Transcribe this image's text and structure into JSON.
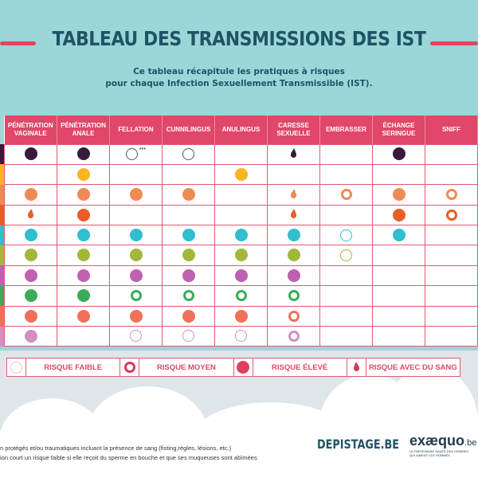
{
  "title": "TABLEAU DES TRANSMISSIONS DES IST",
  "subtitle_line1": "Ce tableau récapitule les pratiques à risques",
  "subtitle_line2": "pour chaque Infection Sexuellement Transmissible (IST).",
  "colors": {
    "header": "#e0476a",
    "background": "#9dd6d8",
    "title": "#1f5366"
  },
  "columns": [
    "PÉNÉTRATION VAGINALE",
    "PÉNÉTRATION ANALE",
    "FELLATION",
    "CUNNILINGUS",
    "ANULINGUS",
    "CARESSE SEXUELLE",
    "EMBRASSER",
    "ÉCHANGE SERINGUE",
    "SNIFF"
  ],
  "rows": [
    {
      "color": "#3a1a3a",
      "cells": [
        "high",
        "high",
        "low***",
        "low",
        "",
        "blood",
        "",
        "high",
        ""
      ]
    },
    {
      "color": "#f5b622",
      "cells": [
        "",
        "high",
        "",
        "",
        "high",
        "",
        "",
        "",
        ""
      ]
    },
    {
      "color": "#ef8a55",
      "cells": [
        "high",
        "high",
        "high",
        "high",
        "",
        "blood",
        "medium",
        "high",
        "medium"
      ]
    },
    {
      "color": "#ea5d26",
      "cells": [
        "blood",
        "high",
        "",
        "",
        "",
        "blood",
        "",
        "high",
        "medium"
      ]
    },
    {
      "color": "#2fbfcf",
      "cells": [
        "high",
        "high",
        "high",
        "high",
        "high",
        "high",
        "low",
        "high",
        ""
      ]
    },
    {
      "color": "#a2b83a",
      "cells": [
        "high",
        "high",
        "high",
        "high",
        "high",
        "high",
        "low",
        "",
        ""
      ]
    },
    {
      "color": "#c060b0",
      "cells": [
        "high",
        "high",
        "high",
        "high",
        "high",
        "high",
        "",
        "",
        ""
      ]
    },
    {
      "color": "#3aac58",
      "cells": [
        "high",
        "high",
        "medium",
        "medium",
        "medium",
        "medium",
        "",
        "",
        ""
      ]
    },
    {
      "color": "#f0705a",
      "cells": [
        "high",
        "high",
        "high",
        "high",
        "high",
        "medium",
        "",
        "",
        ""
      ]
    },
    {
      "color": "#d090c0",
      "cells": [
        "high",
        "",
        "low",
        "low",
        "low",
        "medium",
        "",
        "",
        ""
      ]
    }
  ],
  "footnote_marker": "***",
  "legend": {
    "low": "RISQUE FAIBLE",
    "medium": "RISQUE MOYEN",
    "high": "RISQUE ÉLEVÉ",
    "blood": "RISQUE AVEC DU SANG"
  },
  "footnotes": [
    "n protégés et/ou traumatiques incluant la présence de sang (fisting,règles, lésions, etc.)",
    "ion court un risque faible si elle reçoit du sperme en bouche et que ses muqueuses sont abîmées"
  ],
  "logos": {
    "depistage": "DEPISTAGE.BE",
    "exaequo": "exæquo",
    "exaequo_tld": ".be",
    "exaequo_tagline": "LE PARTENAIRE SANTÉ DES HOMMES QUI AIMENT LES HOMMES"
  }
}
